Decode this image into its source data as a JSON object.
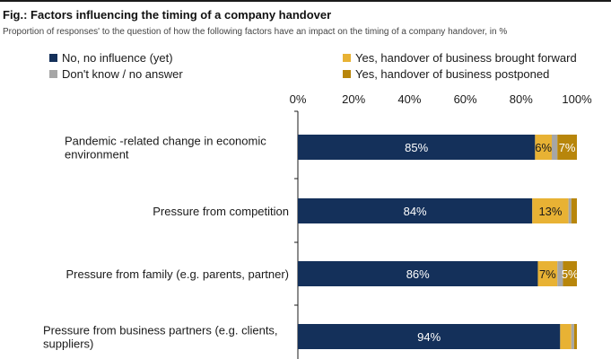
{
  "figure": {
    "title": "Fig.: Factors influencing the timing of a company handover",
    "subtitle": "Proportion of responses' to the question of how the following factors have an impact on the timing of a company handover, in %"
  },
  "legend": [
    {
      "label": "No, no influence (yet)",
      "color": "#14305a"
    },
    {
      "label": "Yes, handover of business brought forward",
      "color": "#e8b234"
    },
    {
      "label": "Don't know / no answer",
      "color": "#a6a6a6"
    },
    {
      "label": "Yes, handover of business postponed",
      "color": "#b8860b"
    }
  ],
  "chart_data": {
    "type": "bar",
    "orientation": "horizontal",
    "stacked": true,
    "xlim": [
      0,
      100
    ],
    "x_ticks": [
      "0%",
      "20%",
      "40%",
      "60%",
      "80%",
      "100%"
    ],
    "categories": [
      [
        "Pandemic -related change in economic",
        "environment"
      ],
      [
        "Pressure from competition"
      ],
      [
        "Pressure from family (e.g.  parents, partner)"
      ],
      [
        "Pressure from business partners (e.g. clients,",
        "suppliers)"
      ]
    ],
    "series": [
      {
        "name": "No, no influence (yet)",
        "color": "#14305a",
        "values": [
          85,
          84,
          86,
          94
        ],
        "labels": [
          "85%",
          "84%",
          "86%",
          "94%"
        ],
        "label_color": "#ffffff"
      },
      {
        "name": "Yes, handover of business brought forward",
        "color": "#e8b234",
        "values": [
          6,
          13,
          7,
          4
        ],
        "labels": [
          "6%",
          "13%",
          "7%",
          ""
        ],
        "label_color": "#1a1a1a"
      },
      {
        "name": "Don't know / no answer",
        "color": "#a6a6a6",
        "values": [
          2,
          1,
          2,
          1
        ],
        "labels": [
          "",
          "",
          "",
          ""
        ],
        "label_color": "#1a1a1a"
      },
      {
        "name": "Yes, handover of business postponed",
        "color": "#b8860b",
        "values": [
          7,
          2,
          5,
          1
        ],
        "labels": [
          "7%",
          "",
          "5%",
          ""
        ],
        "label_color": "#ffffff"
      }
    ]
  }
}
